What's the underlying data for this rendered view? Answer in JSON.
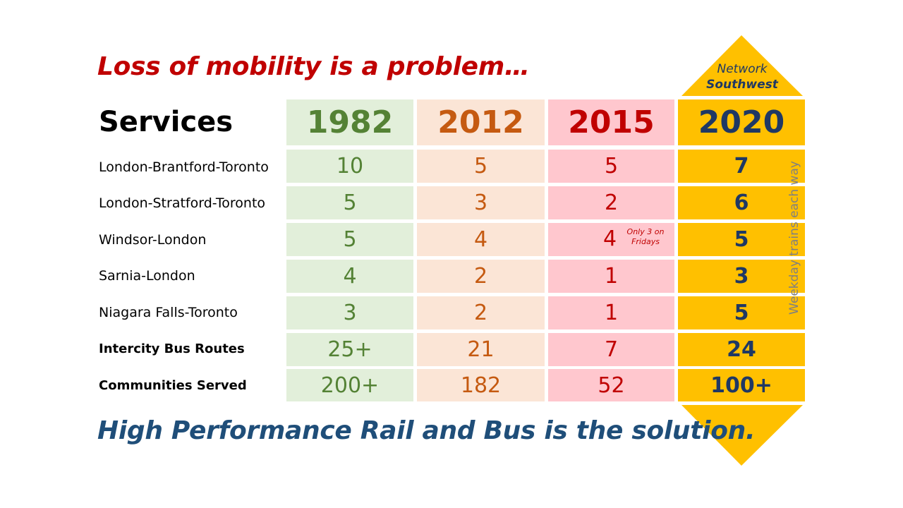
{
  "headline": "Loss of mobility is a problem…",
  "services_label": "Services",
  "years": [
    "1982",
    "2012",
    "2015",
    "2020"
  ],
  "brand": {
    "line1": "Network",
    "line2": "Southwest"
  },
  "rows": [
    {
      "label": "London-Brantford-Toronto",
      "values": [
        "10",
        "5",
        "5",
        "7"
      ]
    },
    {
      "label": "London-Stratford-Toronto",
      "values": [
        "5",
        "3",
        "2",
        "6"
      ]
    },
    {
      "label": "Windsor-London",
      "values": [
        "5",
        "4",
        "4",
        "5"
      ]
    },
    {
      "label": "Sarnia-London",
      "values": [
        "4",
        "2",
        "1",
        "3"
      ]
    },
    {
      "label": "Niagara Falls-Toronto",
      "values": [
        "3",
        "2",
        "1",
        "5"
      ]
    },
    {
      "label": "Intercity Bus Routes",
      "values": [
        "25+",
        "21",
        "7",
        "24"
      ]
    },
    {
      "label": "Communities Served",
      "values": [
        "200+",
        "182",
        "52",
        "100+"
      ]
    }
  ],
  "note_line1": "Only 3 on",
  "note_line2": "Fridays",
  "side_label": "Weekday trains each way",
  "footline": "High Performance Rail and Bus is the solution.",
  "colors": {
    "headline": "#c00000",
    "footline": "#1f4e79",
    "gold": "#ffc000"
  }
}
